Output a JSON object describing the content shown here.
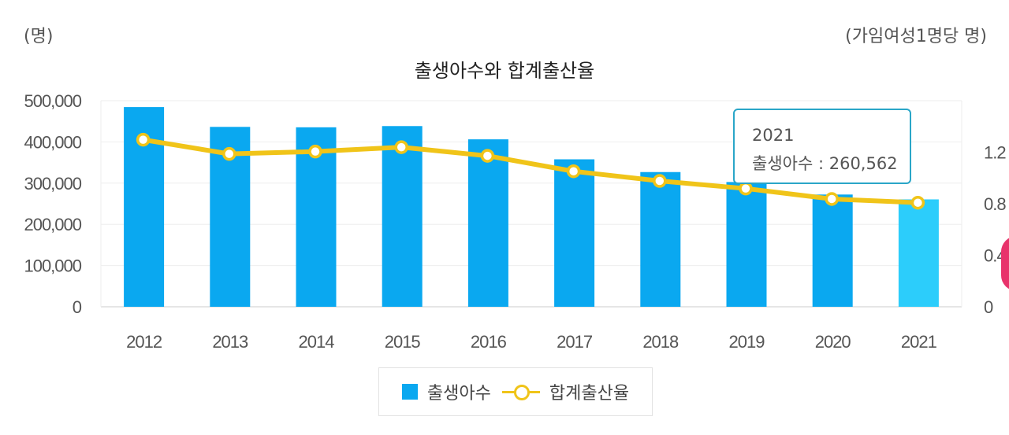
{
  "page": {
    "unit_left": "(명)",
    "unit_right": "(가임여성1명당 명)"
  },
  "chart_data": {
    "type": "bar",
    "title": "출생아수와 합계출산율",
    "categories": [
      "2012",
      "2013",
      "2014",
      "2015",
      "2016",
      "2017",
      "2018",
      "2019",
      "2020",
      "2021"
    ],
    "series": [
      {
        "name": "출생아수",
        "type": "bar",
        "axis": "left",
        "color": "#0aa8f0",
        "highlight_color": "#2ccdfb",
        "highlight_index": 9,
        "values": [
          484550,
          436455,
          435435,
          438420,
          406243,
          357771,
          326822,
          302676,
          272337,
          260562
        ]
      },
      {
        "name": "합계출산율",
        "type": "line",
        "axis": "right",
        "color": "#f0c419",
        "values": [
          1.297,
          1.187,
          1.205,
          1.239,
          1.172,
          1.052,
          0.977,
          0.918,
          0.837,
          0.808
        ]
      }
    ],
    "y_left": {
      "min": 0,
      "max": 500000,
      "ticks": [
        "0",
        "100,000",
        "200,000",
        "300,000",
        "400,000",
        "500,000"
      ]
    },
    "y_right": {
      "min": 0,
      "max": 1.6,
      "ticks": [
        "0",
        "0.4",
        "0.8",
        "1.2"
      ]
    },
    "grid": true,
    "legend_position": "bottom-center"
  },
  "tooltip": {
    "year": "2021",
    "label": "출생아수 :",
    "value": "260,562"
  }
}
